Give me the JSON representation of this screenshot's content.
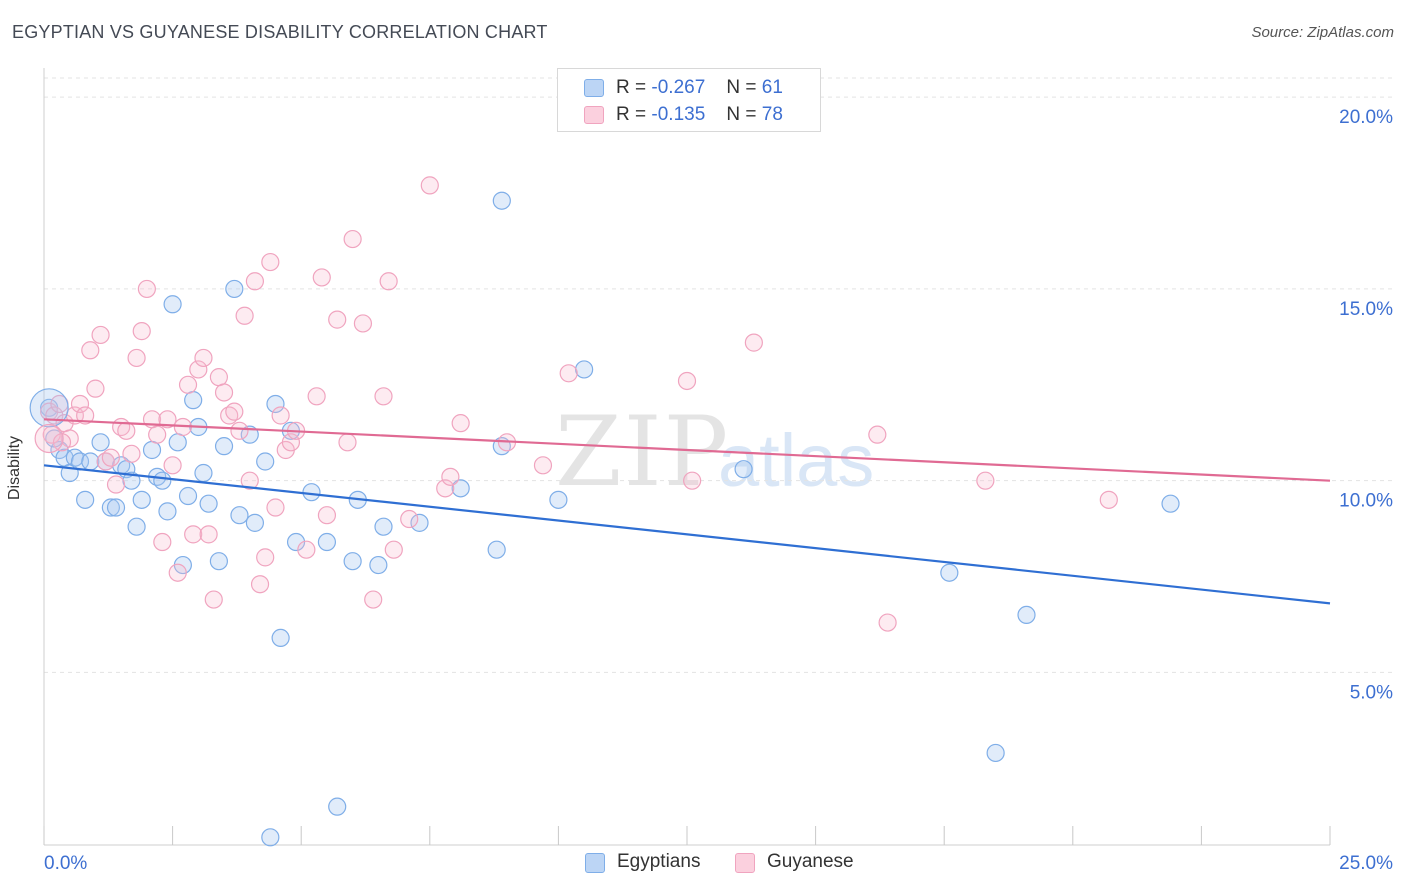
{
  "header": {
    "title": "EGYPTIAN VS GUYANESE DISABILITY CORRELATION CHART",
    "source": "Source: ZipAtlas.com"
  },
  "legend": {
    "blue": {
      "r_label": "R =",
      "r_value": "-0.267",
      "n_label": "N =",
      "n_value": "61",
      "color": "#7faee8"
    },
    "pink": {
      "r_label": "R =",
      "r_value": "-0.135",
      "n_label": "N =",
      "n_value": "78",
      "color": "#f0a4bf"
    }
  },
  "bottom_legend": {
    "blue": "Egyptians",
    "pink": "Guyanese"
  },
  "watermark": {
    "zip": "ZIP",
    "atlas": "atlas"
  },
  "chart_data": {
    "type": "scatter",
    "title": "EGYPTIAN VS GUYANESE DISABILITY CORRELATION CHART",
    "xlabel": "",
    "ylabel": "Disability",
    "xlim": [
      0,
      25
    ],
    "ylim": [
      0.5,
      20.5
    ],
    "x_tick_labels": [
      "0.0%",
      "25.0%"
    ],
    "y_ticks": [
      5,
      10,
      15,
      20
    ],
    "y_tick_labels": [
      "5.0%",
      "10.0%",
      "15.0%",
      "20.0%"
    ],
    "colors": {
      "blue": "#7faee8",
      "blue_line": "#2f6fd3",
      "pink": "#f0a4bf",
      "pink_line": "#e06a93",
      "axis_text": "#3d6fd1"
    },
    "series": [
      {
        "name": "Egyptians",
        "color": "blue",
        "trend": {
          "x0": 0,
          "y0": 10.4,
          "x1": 25,
          "y1": 6.8
        },
        "points": [
          [
            0.1,
            11.9
          ],
          [
            0.3,
            10.8
          ],
          [
            0.4,
            10.6
          ],
          [
            0.5,
            10.2
          ],
          [
            0.6,
            10.6
          ],
          [
            0.7,
            10.5
          ],
          [
            0.8,
            9.5
          ],
          [
            0.9,
            10.5
          ],
          [
            1.1,
            11.0
          ],
          [
            1.2,
            10.5
          ],
          [
            1.3,
            9.3
          ],
          [
            1.4,
            9.3
          ],
          [
            1.5,
            10.4
          ],
          [
            1.6,
            10.3
          ],
          [
            1.7,
            10.0
          ],
          [
            1.8,
            8.8
          ],
          [
            1.9,
            9.5
          ],
          [
            2.1,
            10.8
          ],
          [
            2.2,
            10.1
          ],
          [
            2.3,
            10.0
          ],
          [
            2.4,
            9.2
          ],
          [
            2.5,
            14.6
          ],
          [
            2.6,
            11.0
          ],
          [
            2.7,
            7.8
          ],
          [
            2.8,
            9.6
          ],
          [
            2.9,
            12.1
          ],
          [
            3.0,
            11.4
          ],
          [
            3.1,
            10.2
          ],
          [
            3.2,
            9.4
          ],
          [
            3.4,
            7.9
          ],
          [
            3.5,
            10.9
          ],
          [
            3.7,
            15.0
          ],
          [
            3.8,
            9.1
          ],
          [
            4.0,
            11.2
          ],
          [
            4.1,
            8.9
          ],
          [
            4.3,
            10.5
          ],
          [
            4.4,
            0.7
          ],
          [
            4.5,
            12.0
          ],
          [
            4.6,
            5.9
          ],
          [
            4.8,
            11.3
          ],
          [
            4.9,
            8.4
          ],
          [
            5.2,
            9.7
          ],
          [
            5.5,
            8.4
          ],
          [
            5.7,
            1.5
          ],
          [
            6.0,
            7.9
          ],
          [
            6.1,
            9.5
          ],
          [
            6.5,
            7.8
          ],
          [
            6.6,
            8.8
          ],
          [
            7.3,
            8.9
          ],
          [
            8.1,
            9.8
          ],
          [
            8.8,
            8.2
          ],
          [
            8.9,
            10.9
          ],
          [
            8.9,
            17.3
          ],
          [
            10.0,
            9.5
          ],
          [
            10.5,
            12.9
          ],
          [
            13.6,
            10.3
          ],
          [
            17.6,
            7.6
          ],
          [
            18.5,
            2.9
          ],
          [
            19.1,
            6.5
          ],
          [
            21.9,
            9.4
          ],
          [
            0.2,
            11.1
          ]
        ]
      },
      {
        "name": "Guyanese",
        "color": "pink",
        "trend": {
          "x0": 0,
          "y0": 11.6,
          "x1": 25,
          "y1": 10.0
        },
        "points": [
          [
            0.1,
            11.8
          ],
          [
            0.2,
            11.7
          ],
          [
            0.3,
            12.0
          ],
          [
            0.4,
            11.5
          ],
          [
            0.5,
            11.1
          ],
          [
            0.6,
            11.7
          ],
          [
            0.7,
            12.0
          ],
          [
            0.8,
            11.7
          ],
          [
            0.9,
            13.4
          ],
          [
            1.0,
            12.4
          ],
          [
            1.1,
            13.8
          ],
          [
            1.2,
            10.5
          ],
          [
            1.3,
            10.6
          ],
          [
            1.4,
            9.9
          ],
          [
            1.5,
            11.4
          ],
          [
            1.6,
            11.3
          ],
          [
            1.7,
            10.7
          ],
          [
            1.8,
            13.2
          ],
          [
            1.9,
            13.9
          ],
          [
            2.0,
            15.0
          ],
          [
            2.1,
            11.6
          ],
          [
            2.2,
            11.2
          ],
          [
            2.3,
            8.4
          ],
          [
            2.4,
            11.6
          ],
          [
            2.5,
            10.4
          ],
          [
            2.6,
            7.6
          ],
          [
            2.7,
            11.4
          ],
          [
            2.8,
            12.5
          ],
          [
            2.9,
            8.6
          ],
          [
            3.0,
            12.9
          ],
          [
            3.1,
            13.2
          ],
          [
            3.2,
            8.6
          ],
          [
            3.3,
            6.9
          ],
          [
            3.4,
            12.7
          ],
          [
            3.5,
            12.3
          ],
          [
            3.6,
            11.7
          ],
          [
            3.7,
            11.8
          ],
          [
            3.8,
            11.3
          ],
          [
            3.9,
            14.3
          ],
          [
            4.0,
            10.0
          ],
          [
            4.1,
            15.2
          ],
          [
            4.2,
            7.3
          ],
          [
            4.3,
            8.0
          ],
          [
            4.4,
            15.7
          ],
          [
            4.5,
            9.3
          ],
          [
            4.6,
            11.7
          ],
          [
            4.7,
            10.8
          ],
          [
            4.8,
            11.0
          ],
          [
            4.9,
            11.3
          ],
          [
            5.1,
            8.2
          ],
          [
            5.3,
            12.2
          ],
          [
            5.4,
            15.3
          ],
          [
            5.5,
            9.1
          ],
          [
            5.7,
            14.2
          ],
          [
            5.9,
            11.0
          ],
          [
            6.0,
            16.3
          ],
          [
            6.2,
            14.1
          ],
          [
            6.4,
            6.9
          ],
          [
            6.6,
            12.2
          ],
          [
            6.7,
            15.2
          ],
          [
            6.8,
            8.2
          ],
          [
            7.1,
            9.0
          ],
          [
            7.5,
            17.7
          ],
          [
            7.8,
            9.8
          ],
          [
            7.9,
            10.1
          ],
          [
            8.1,
            11.5
          ],
          [
            9.0,
            11.0
          ],
          [
            9.7,
            10.4
          ],
          [
            10.2,
            12.8
          ],
          [
            12.5,
            12.6
          ],
          [
            12.6,
            10.0
          ],
          [
            13.8,
            13.6
          ],
          [
            16.2,
            11.2
          ],
          [
            16.4,
            6.3
          ],
          [
            18.3,
            10.0
          ],
          [
            20.7,
            9.5
          ],
          [
            0.15,
            11.2
          ],
          [
            0.35,
            11.0
          ]
        ]
      }
    ]
  }
}
